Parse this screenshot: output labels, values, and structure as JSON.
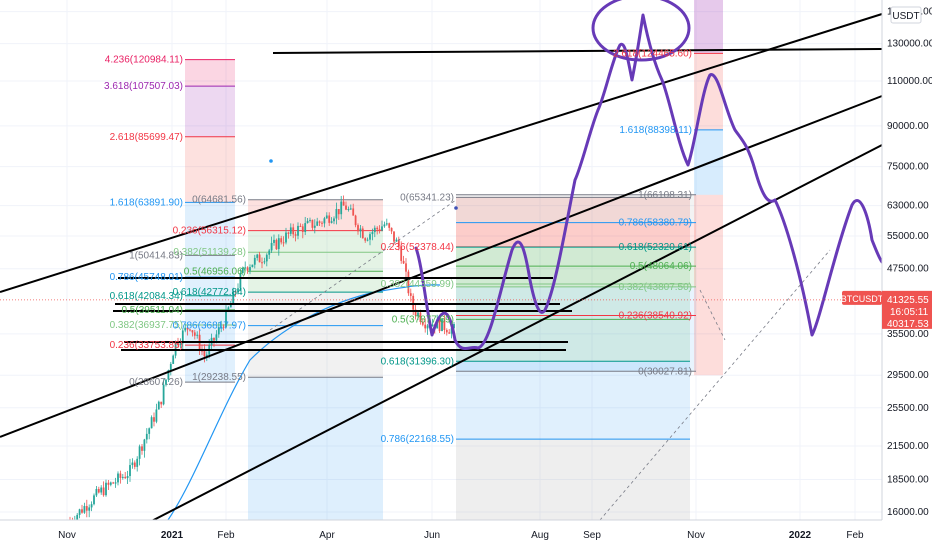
{
  "symbol": "BTCUSDT",
  "currency_label": "USDT",
  "colors": {
    "up": "#26a69a",
    "down": "#ef5350",
    "purple": "#673ab7",
    "trend": "#000000",
    "ma": "#2196f3",
    "price_tag": "#ef5350"
  },
  "price_axis": {
    "scale": "log",
    "ticks": [
      "150000.00",
      "130000.00",
      "110000.00",
      "90000.00",
      "75000.00",
      "63000.00",
      "55000.00",
      "47500.00",
      "41325.55",
      "35500.00",
      "29500.00",
      "25500.00",
      "21500.00",
      "18500.00",
      "16000.00"
    ],
    "current_price": "41325.55",
    "countdown": "16:05:11",
    "low_tag": "40317.53"
  },
  "time_axis": {
    "labels": [
      {
        "text": "Nov",
        "strong": false
      },
      {
        "text": "2021",
        "strong": true
      },
      {
        "text": "Feb",
        "strong": false
      },
      {
        "text": "Apr",
        "strong": false
      },
      {
        "text": "Jun",
        "strong": false
      },
      {
        "text": "Aug",
        "strong": false
      },
      {
        "text": "Sep",
        "strong": false
      },
      {
        "text": "Nov",
        "strong": false
      },
      {
        "text": "2022",
        "strong": true
      },
      {
        "text": "Feb",
        "strong": false
      }
    ]
  },
  "chart_data": {
    "type": "candlestick",
    "title": "",
    "xlabel": "",
    "ylabel": "",
    "y_scale": "log",
    "ylim": [
      13500,
      158000
    ],
    "grid": true,
    "price_series": {
      "name": "BTCUSDT",
      "x": [
        "Nov 2020",
        "Dec 2020",
        "Jan 2021",
        "Feb 2021",
        "Mar 2021",
        "Apr 2021",
        "May 2021",
        "Jun 2021",
        "Jul 2021",
        "Aug 2021"
      ],
      "values": [
        15500,
        19000,
        33000,
        45000,
        57000,
        58000,
        37000,
        35000,
        40000,
        41325.55
      ]
    },
    "fib_retracements": [
      {
        "set": "A",
        "level": "4.236",
        "value": "120984.11"
      },
      {
        "set": "A",
        "level": "3.618",
        "value": "107507.03"
      },
      {
        "set": "A",
        "level": "2.618",
        "value": "85699.47"
      },
      {
        "set": "A",
        "level": "1.618",
        "value": "63891.90"
      },
      {
        "set": "A",
        "level": "1",
        "value": "50414.83"
      },
      {
        "set": "A",
        "level": "0.786",
        "value": "45748.01"
      },
      {
        "set": "A",
        "level": "0.618",
        "value": "42084.34"
      },
      {
        "set": "A",
        "level": "0.5",
        "value": "39511.04"
      },
      {
        "set": "A",
        "level": "0.382",
        "value": "36937.75"
      },
      {
        "set": "A",
        "level": "0.236",
        "value": "33753.85"
      },
      {
        "set": "A",
        "level": "0",
        "value": "28607.26"
      },
      {
        "set": "B",
        "level": "0",
        "value": "64681.56"
      },
      {
        "set": "B",
        "level": "0.236",
        "value": "56315.12"
      },
      {
        "set": "B",
        "level": "0.382",
        "value": "51139.28"
      },
      {
        "set": "B",
        "level": "0.5",
        "value": "46956.06"
      },
      {
        "set": "B",
        "level": "0.618",
        "value": "42772.84"
      },
      {
        "set": "B",
        "level": "0.786",
        "value": "36817.97"
      },
      {
        "set": "B",
        "level": "1",
        "value": "29238.55"
      },
      {
        "set": "C",
        "level": "0",
        "value": "65341.23"
      },
      {
        "set": "C",
        "level": "0.236",
        "value": "52378.44"
      },
      {
        "set": "C",
        "level": "0.382",
        "value": "44359.99"
      },
      {
        "set": "C",
        "level": "0.5",
        "value": "37877.69"
      },
      {
        "set": "C",
        "level": "0.618",
        "value": "31396.30"
      },
      {
        "set": "C",
        "level": "0.786",
        "value": "22168.55"
      },
      {
        "set": "D",
        "level": "1",
        "value": "66108.31"
      },
      {
        "set": "D",
        "level": "0.786",
        "value": "58380.79"
      },
      {
        "set": "D",
        "level": "0.618",
        "value": "52320.61"
      },
      {
        "set": "D",
        "level": "0.5",
        "value": "48064.06"
      },
      {
        "set": "D",
        "level": "0.382",
        "value": "43807.50"
      },
      {
        "set": "D",
        "level": "0.236",
        "value": "38540.92"
      },
      {
        "set": "D",
        "level": "0",
        "value": "30027.81"
      },
      {
        "set": "E",
        "level": "2.618",
        "value": "124465.60"
      },
      {
        "set": "E",
        "level": "1.618",
        "value": "88398.11"
      }
    ]
  }
}
